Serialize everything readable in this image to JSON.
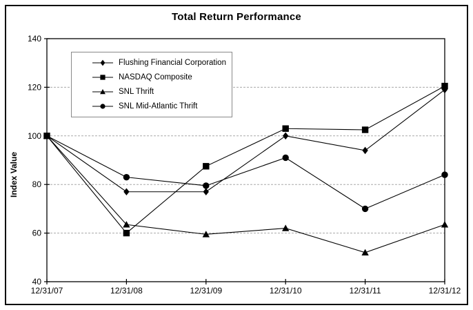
{
  "chart_data": {
    "type": "line",
    "title": "Total Return Performance",
    "xlabel": "",
    "ylabel": "Index Value",
    "categories": [
      "12/31/07",
      "12/31/08",
      "12/31/09",
      "12/31/10",
      "12/31/11",
      "12/31/12"
    ],
    "series": [
      {
        "name": "Flushing Financial Corporation",
        "marker": "diamond",
        "values": [
          100,
          77,
          77,
          100,
          94,
          119
        ]
      },
      {
        "name": "NASDAQ Composite",
        "marker": "square",
        "values": [
          100,
          60,
          87.5,
          103,
          102.5,
          120.5
        ]
      },
      {
        "name": "SNL Thrift",
        "marker": "triangle",
        "values": [
          100,
          63.5,
          59.5,
          62,
          52,
          63.5
        ]
      },
      {
        "name": "SNL Mid-Atlantic Thrift",
        "marker": "circle",
        "values": [
          100,
          83,
          79.5,
          91,
          70,
          84
        ]
      }
    ],
    "ylim": [
      40,
      140
    ],
    "ytick_step": 20,
    "grid": "horizontal-dashed",
    "legend_position": "upper-left-inside",
    "colors": {
      "line": "#000000",
      "grid": "#a8a8a8",
      "frame": "#000000",
      "legend_border": "#888888"
    }
  }
}
